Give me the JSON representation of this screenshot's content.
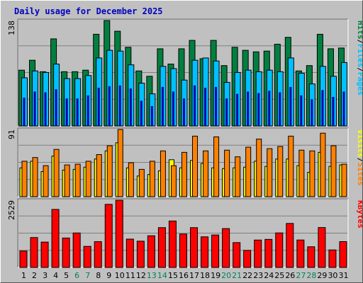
{
  "title": "Daily usage for December 2025",
  "colors": {
    "title": "#0000c0",
    "hits": "#008040",
    "files": "#00c0ff",
    "sites": "#ff8000",
    "visits": "#ffff00",
    "kbytes": "#ff0000",
    "background": "#c0c0c0",
    "weekend_label": "#00805c",
    "weekday_label": "#000000"
  },
  "chart_data": [
    {
      "type": "bar",
      "panel": "top",
      "y_max_label": "138",
      "ylim": [
        0,
        138
      ],
      "grid": true,
      "legend": [
        "Pages",
        "Files",
        "Hits"
      ],
      "categories": [
        "1",
        "2",
        "3",
        "4",
        "5",
        "6",
        "7",
        "8",
        "9",
        "10",
        "11",
        "12",
        "13",
        "14",
        "15",
        "16",
        "17",
        "18",
        "19",
        "20",
        "21",
        "22",
        "23",
        "24",
        "25",
        "26",
        "27",
        "28",
        "29",
        "30",
        "31"
      ],
      "series": [
        {
          "name": "Hits",
          "values": [
            73,
            86,
            71,
            114,
            71,
            71,
            73,
            120,
            138,
            124,
            103,
            72,
            65,
            101,
            81,
            101,
            112,
            88,
            112,
            79,
            103,
            99,
            97,
            98,
            107,
            116,
            72,
            79,
            120,
            101,
            102
          ]
        },
        {
          "name": "Files",
          "values": [
            63,
            72,
            70,
            81,
            62,
            62,
            66,
            89,
            99,
            98,
            80,
            56,
            42,
            78,
            75,
            60,
            86,
            89,
            85,
            57,
            70,
            73,
            71,
            73,
            71,
            89,
            69,
            55,
            78,
            65,
            83
          ]
        },
        {
          "name": "Pages",
          "values": [
            37,
            45,
            44,
            48,
            36,
            36,
            40,
            50,
            52,
            53,
            49,
            33,
            26,
            51,
            45,
            36,
            53,
            50,
            51,
            36,
            42,
            45,
            43,
            46,
            44,
            51,
            40,
            35,
            47,
            38,
            45
          ]
        }
      ]
    },
    {
      "type": "bar",
      "panel": "middle",
      "y_max_label": "91",
      "ylim": [
        0,
        91
      ],
      "grid": true,
      "legend": [
        "Sites",
        "Visits"
      ],
      "categories": [
        "1",
        "2",
        "3",
        "4",
        "5",
        "6",
        "7",
        "8",
        "9",
        "10",
        "11",
        "12",
        "13",
        "14",
        "15",
        "16",
        "17",
        "18",
        "19",
        "20",
        "21",
        "22",
        "23",
        "24",
        "25",
        "26",
        "27",
        "28",
        "29",
        "30",
        "31"
      ],
      "series": [
        {
          "name": "Visits",
          "values": [
            39,
            48,
            34,
            55,
            36,
            37,
            40,
            51,
            62,
            73,
            39,
            28,
            30,
            35,
            50,
            39,
            49,
            45,
            39,
            38,
            39,
            40,
            48,
            41,
            51,
            51,
            42,
            33,
            60,
            41,
            43
          ]
        },
        {
          "name": "Sites",
          "values": [
            48,
            53,
            42,
            64,
            43,
            44,
            48,
            57,
            69,
            91,
            46,
            37,
            48,
            62,
            42,
            60,
            82,
            62,
            81,
            63,
            54,
            67,
            78,
            65,
            68,
            82,
            63,
            62,
            86,
            69,
            44
          ]
        }
      ]
    },
    {
      "type": "bar",
      "panel": "bottom",
      "y_max_label": "2529",
      "ylim": [
        0,
        2529
      ],
      "grid": true,
      "legend": [
        "KBytes"
      ],
      "categories": [
        "1",
        "2",
        "3",
        "4",
        "5",
        "6",
        "7",
        "8",
        "9",
        "10",
        "11",
        "12",
        "13",
        "14",
        "15",
        "16",
        "17",
        "18",
        "19",
        "20",
        "21",
        "22",
        "23",
        "24",
        "25",
        "26",
        "27",
        "28",
        "29",
        "30",
        "31"
      ],
      "series": [
        {
          "name": "KBytes",
          "values": [
            618,
            1125,
            954,
            2183,
            1107,
            1297,
            793,
            970,
            2374,
            2529,
            1066,
            988,
            1192,
            1498,
            1747,
            1256,
            1497,
            1152,
            1221,
            1462,
            935,
            640,
            1031,
            1056,
            1299,
            1656,
            1033,
            778,
            1501,
            659,
            971
          ]
        }
      ]
    }
  ],
  "x_labels": {
    "days": [
      "1",
      "2",
      "3",
      "4",
      "5",
      "6",
      "7",
      "8",
      "9",
      "10",
      "11",
      "12",
      "13",
      "14",
      "15",
      "16",
      "17",
      "18",
      "19",
      "20",
      "21",
      "22",
      "23",
      "24",
      "25",
      "26",
      "27",
      "28",
      "29",
      "30",
      "31"
    ],
    "weekend_days": [
      "6",
      "7",
      "13",
      "14",
      "20",
      "21",
      "27",
      "28"
    ]
  }
}
